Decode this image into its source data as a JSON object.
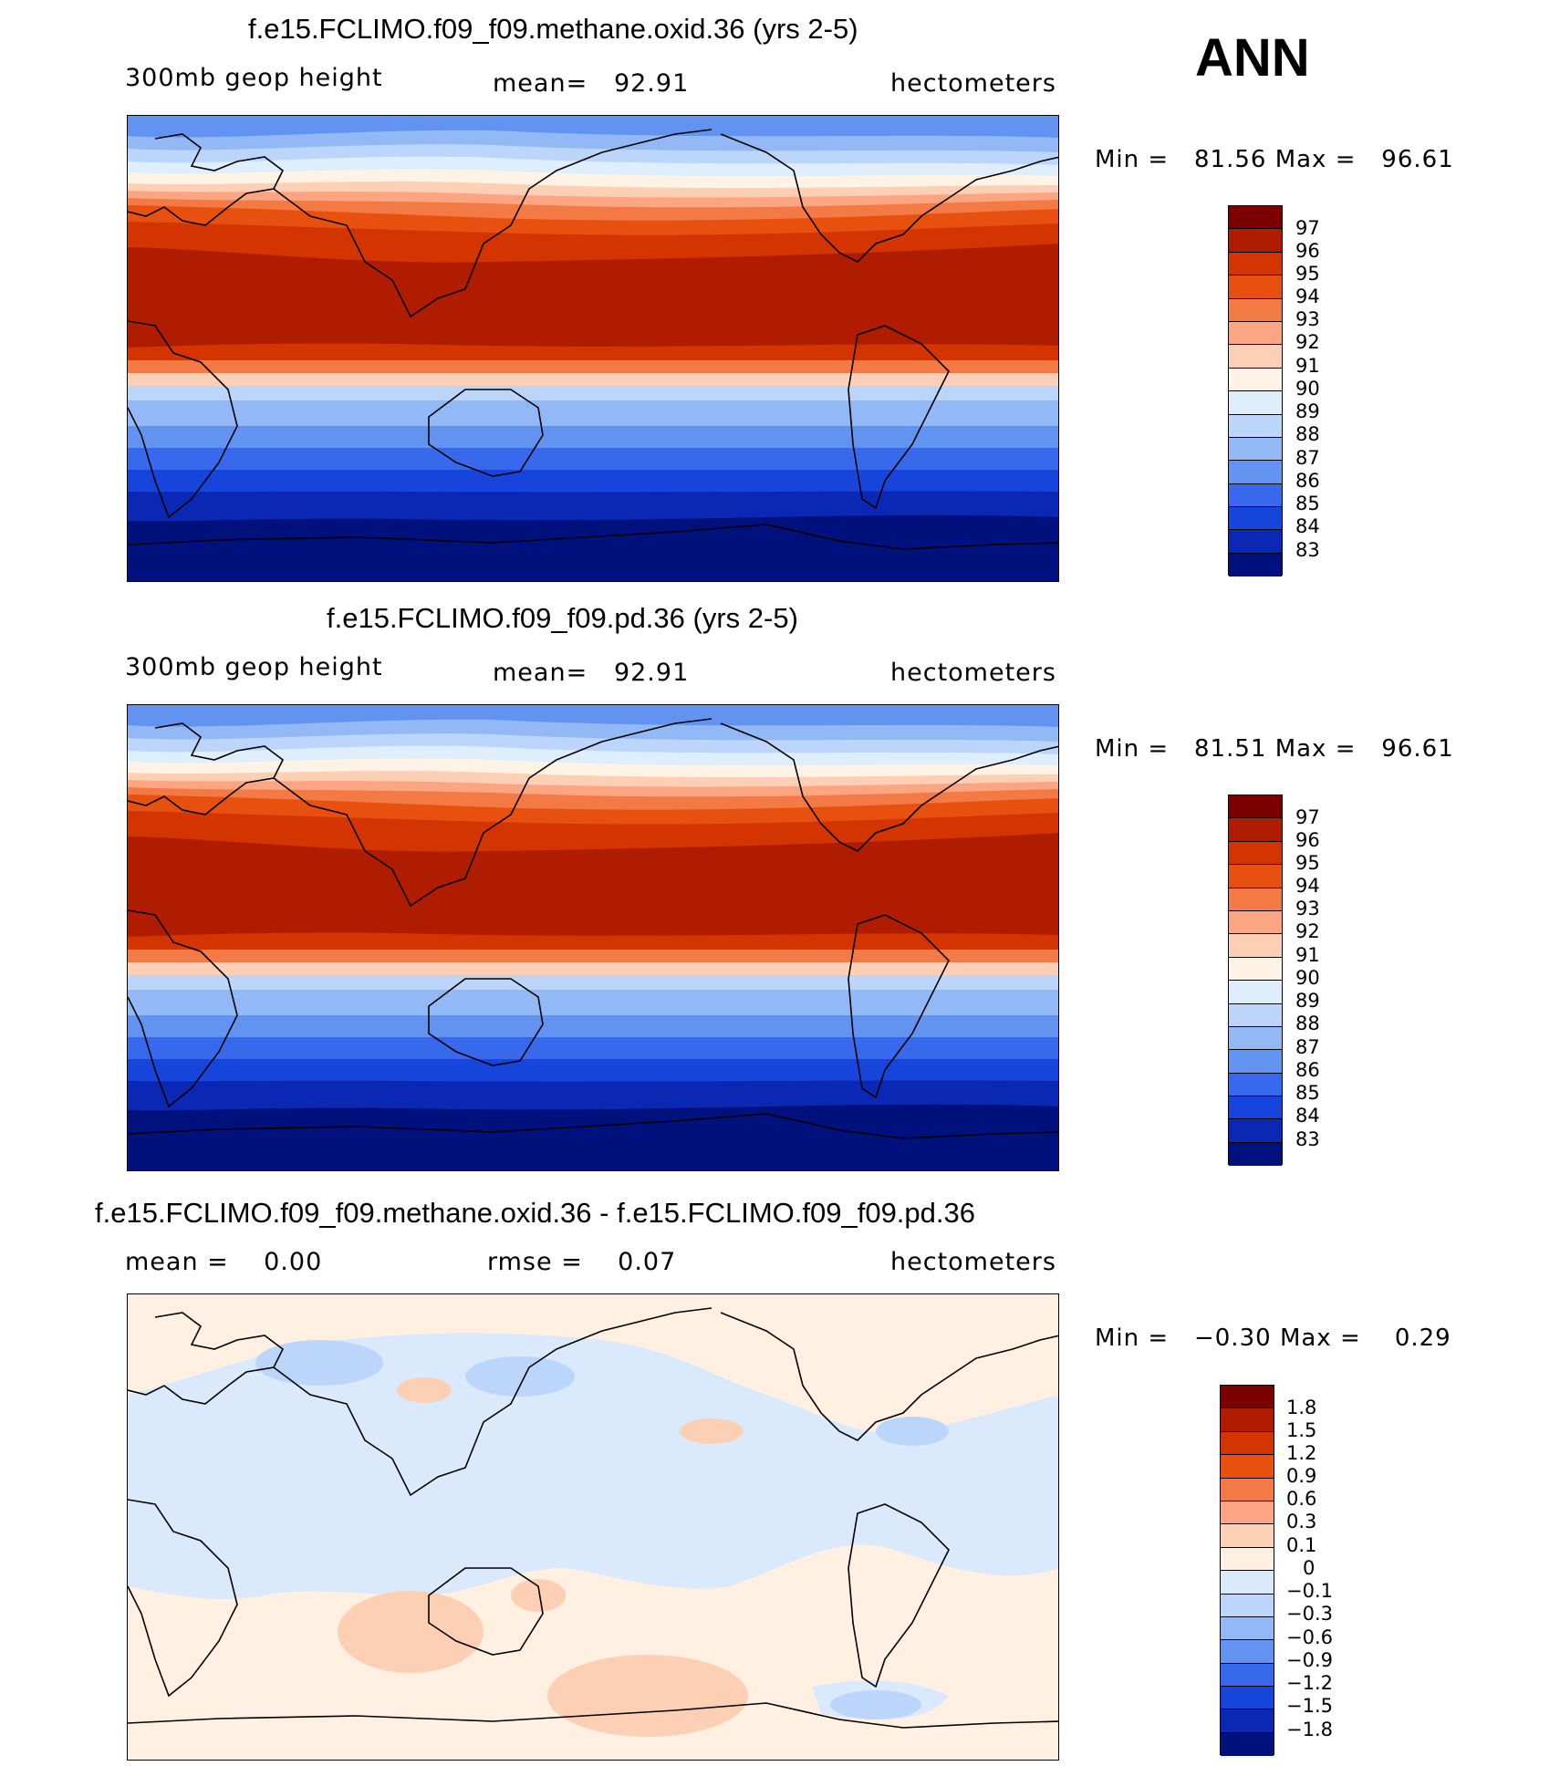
{
  "header": {
    "season": "ANN",
    "units": "hectometers"
  },
  "panels": [
    {
      "title": "f.e15.FCLIMO.f09_f09.methane.oxid.36 (yrs 2-5)",
      "variable": "300mb geop height",
      "stat_label": "mean=",
      "stat_value": "92.91",
      "units": "hectometers",
      "min_label": "Min =",
      "min_value": "81.56",
      "max_label": "Max =",
      "max_value": "96.61",
      "colorbar_labels": [
        "97",
        "96",
        "95",
        "94",
        "93",
        "92",
        "91",
        "90",
        "89",
        "88",
        "87",
        "86",
        "85",
        "84",
        "83"
      ]
    },
    {
      "title": "f.e15.FCLIMO.f09_f09.pd.36 (yrs 2-5)",
      "variable": "300mb geop height",
      "stat_label": "mean=",
      "stat_value": "92.91",
      "units": "hectometers",
      "min_label": "Min =",
      "min_value": "81.51",
      "max_label": "Max =",
      "max_value": "96.61",
      "colorbar_labels": [
        "97",
        "96",
        "95",
        "94",
        "93",
        "92",
        "91",
        "90",
        "89",
        "88",
        "87",
        "86",
        "85",
        "84",
        "83"
      ]
    },
    {
      "title": "f.e15.FCLIMO.f09_f09.methane.oxid.36 - f.e15.FCLIMO.f09_f09.pd.36",
      "stat_label": "mean =",
      "stat_value": "0.00",
      "stat2_label": "rmse =",
      "stat2_value": "0.07",
      "units": "hectometers",
      "min_label": "Min =",
      "min_value": "−0.30",
      "max_label": "Max =",
      "max_value": "0.29",
      "colorbar_labels": [
        "1.8",
        "1.5",
        "1.2",
        "0.9",
        "0.6",
        "0.3",
        "0.1",
        "0",
        "−0.1",
        "−0.3",
        "−0.6",
        "−0.9",
        "−1.2",
        "−1.5",
        "−1.8"
      ]
    }
  ],
  "colors": {
    "abs_scale": [
      "#7b0000",
      "#b01c00",
      "#d43400",
      "#e85010",
      "#f47a45",
      "#fca583",
      "#fdd0b5",
      "#fff3e6",
      "#dfeefd",
      "#bcd6fb",
      "#93b8f6",
      "#6393f0",
      "#3869ed",
      "#1745dc",
      "#0a28b4",
      "#00107c"
    ],
    "diff_scale": [
      "#7b0000",
      "#b01c00",
      "#d43400",
      "#e85010",
      "#f47a45",
      "#fca583",
      "#fdd0b5",
      "#fff0e2",
      "#dbe9fc",
      "#bcd6fb",
      "#93b8f6",
      "#6393f0",
      "#3869ed",
      "#1745dc",
      "#0a28b4",
      "#00107c"
    ]
  }
}
